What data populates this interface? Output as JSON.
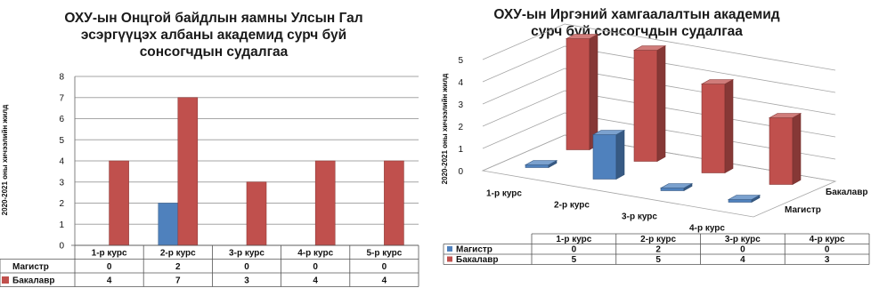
{
  "chart_data": [
    {
      "type": "bar",
      "title_lines": [
        "ОХУ-ын Онцгой байдлын яамны Улсын Гал",
        "эсэргүүцэх албаны академид сурч буй",
        "сонсогчдын судалгаа"
      ],
      "ylabel": "2020-2021 оны хичээлийн жилд",
      "categories": [
        "1-р курс",
        "2-р курс",
        "3-р курс",
        "4-р курс",
        "5-р курс"
      ],
      "series": [
        {
          "name": "Магистр",
          "values": [
            0,
            2,
            0,
            0,
            0
          ],
          "color": "#4f81bd"
        },
        {
          "name": "Бакалавр",
          "values": [
            4,
            7,
            3,
            4,
            4
          ],
          "color": "#c0504d"
        }
      ],
      "ylim": [
        0,
        8
      ],
      "yticks": [
        "0",
        "1",
        "2",
        "3",
        "4",
        "5",
        "6",
        "7",
        "8"
      ],
      "grid": true,
      "data_table": true
    },
    {
      "type": "bar",
      "title_lines": [
        "ОХУ-ын Иргэний хамгаалалтын академид",
        "сурч буй сонсогчдын судалгаа"
      ],
      "ylabel": "2020-2021 оны хичээлийн жилд",
      "categories": [
        "1-р курс",
        "2-р курс",
        "3-р курс",
        "4-р курс"
      ],
      "series": [
        {
          "name": "Магистр",
          "values": [
            0,
            2,
            0,
            0
          ],
          "color": "#4f81bd"
        },
        {
          "name": "Бакалавр",
          "values": [
            5,
            5,
            4,
            3
          ],
          "color": "#c0504d"
        }
      ],
      "ylim": [
        0,
        5
      ],
      "yticks": [
        "0",
        "1",
        "2",
        "3",
        "4",
        "5"
      ],
      "grid": true,
      "style": "3d",
      "data_table": true
    }
  ]
}
